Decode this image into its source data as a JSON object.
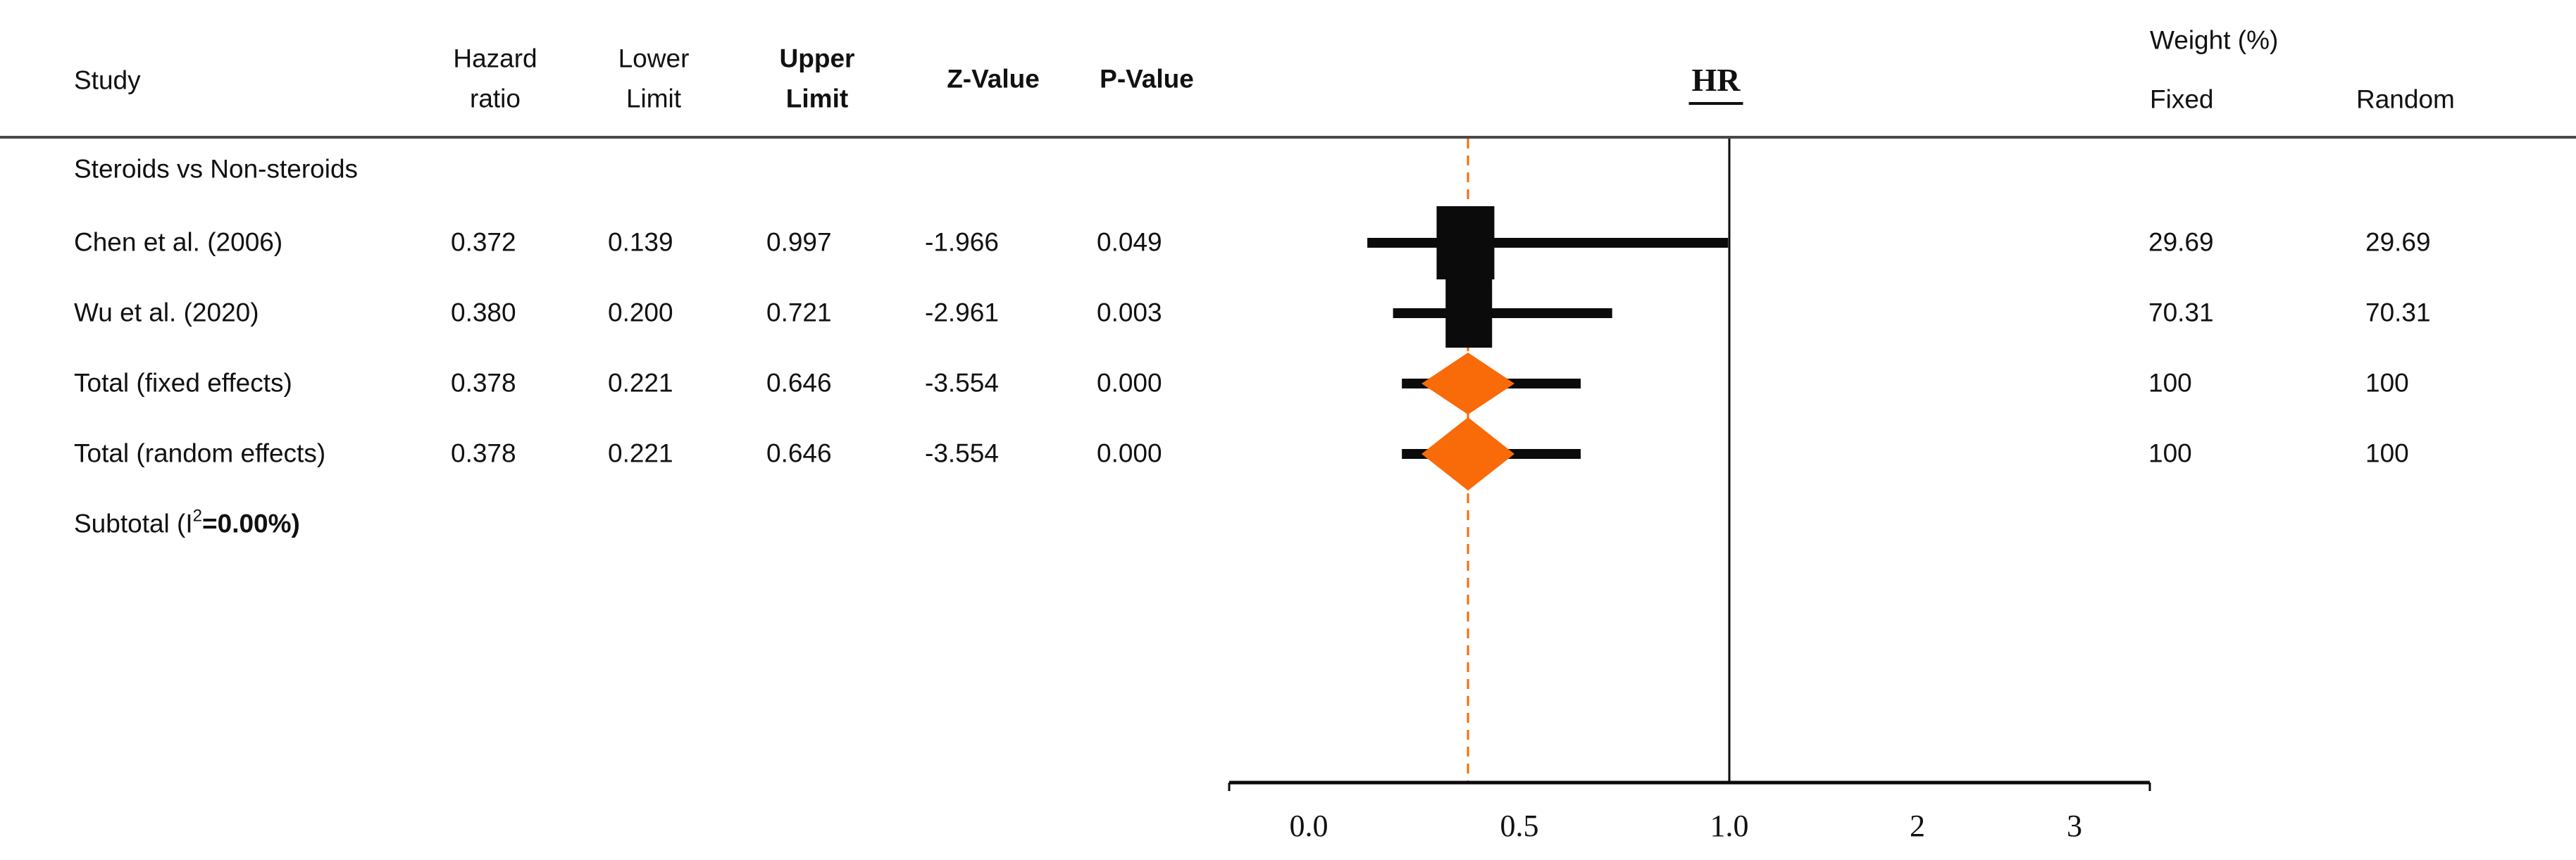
{
  "header": {
    "study": "Study",
    "hazard_ratio": "Hazard\nratio",
    "lower_limit": "Lower\nLimit",
    "upper_limit": "Upper\nLimit",
    "z_value": "Z-Value",
    "p_value": "P-Value",
    "effect_label": "HR",
    "weight": "Weight (%)",
    "weight_fixed": "Fixed",
    "weight_random": "Random"
  },
  "colors": {
    "orange": "#f96a08",
    "line_black": "#0b0b0b",
    "separator_gray": "#4a4a4a",
    "text": "#111111"
  },
  "chart_data": {
    "type": "forest",
    "effect_measure": "HR",
    "group_label": "Steroids vs Non-steroids",
    "rows": [
      {
        "study": "Chen et al. (2006)",
        "hr": "0.372",
        "lower": "0.139",
        "upper": "0.997",
        "z": "-1.966",
        "p": "0.049",
        "weight_fixed": "29.69",
        "weight_random": "29.69",
        "marker": "square"
      },
      {
        "study": "Wu et al. (2020)",
        "hr": "0.380",
        "lower": "0.200",
        "upper": "0.721",
        "z": "-2.961",
        "p": "0.003",
        "weight_fixed": "70.31",
        "weight_random": "70.31",
        "marker": "square"
      },
      {
        "study": "Total (fixed effects)",
        "hr": "0.378",
        "lower": "0.221",
        "upper": "0.646",
        "z": "-3.554",
        "p": "0.000",
        "weight_fixed": "100",
        "weight_random": "100",
        "marker": "diamond"
      },
      {
        "study": "Total (random effects)",
        "hr": "0.378",
        "lower": "0.221",
        "upper": "0.646",
        "z": "-3.554",
        "p": "0.000",
        "weight_fixed": "100",
        "weight_random": "100",
        "marker": "diamond"
      }
    ],
    "subtotal_prefix": "Subtotal (I",
    "subtotal_sup": "2",
    "subtotal_bold": "=0.00%)",
    "heterogeneity_i2": "0.00%",
    "x_ticks": [
      0.0,
      0.5,
      1.0,
      2,
      3
    ],
    "tick_labels": [
      "0.0",
      "0.5",
      "1.0",
      "2",
      "3"
    ],
    "ref_line": 1.0,
    "pooled_line": 0.378,
    "xlabel": "",
    "legend": "none",
    "grid": false
  }
}
